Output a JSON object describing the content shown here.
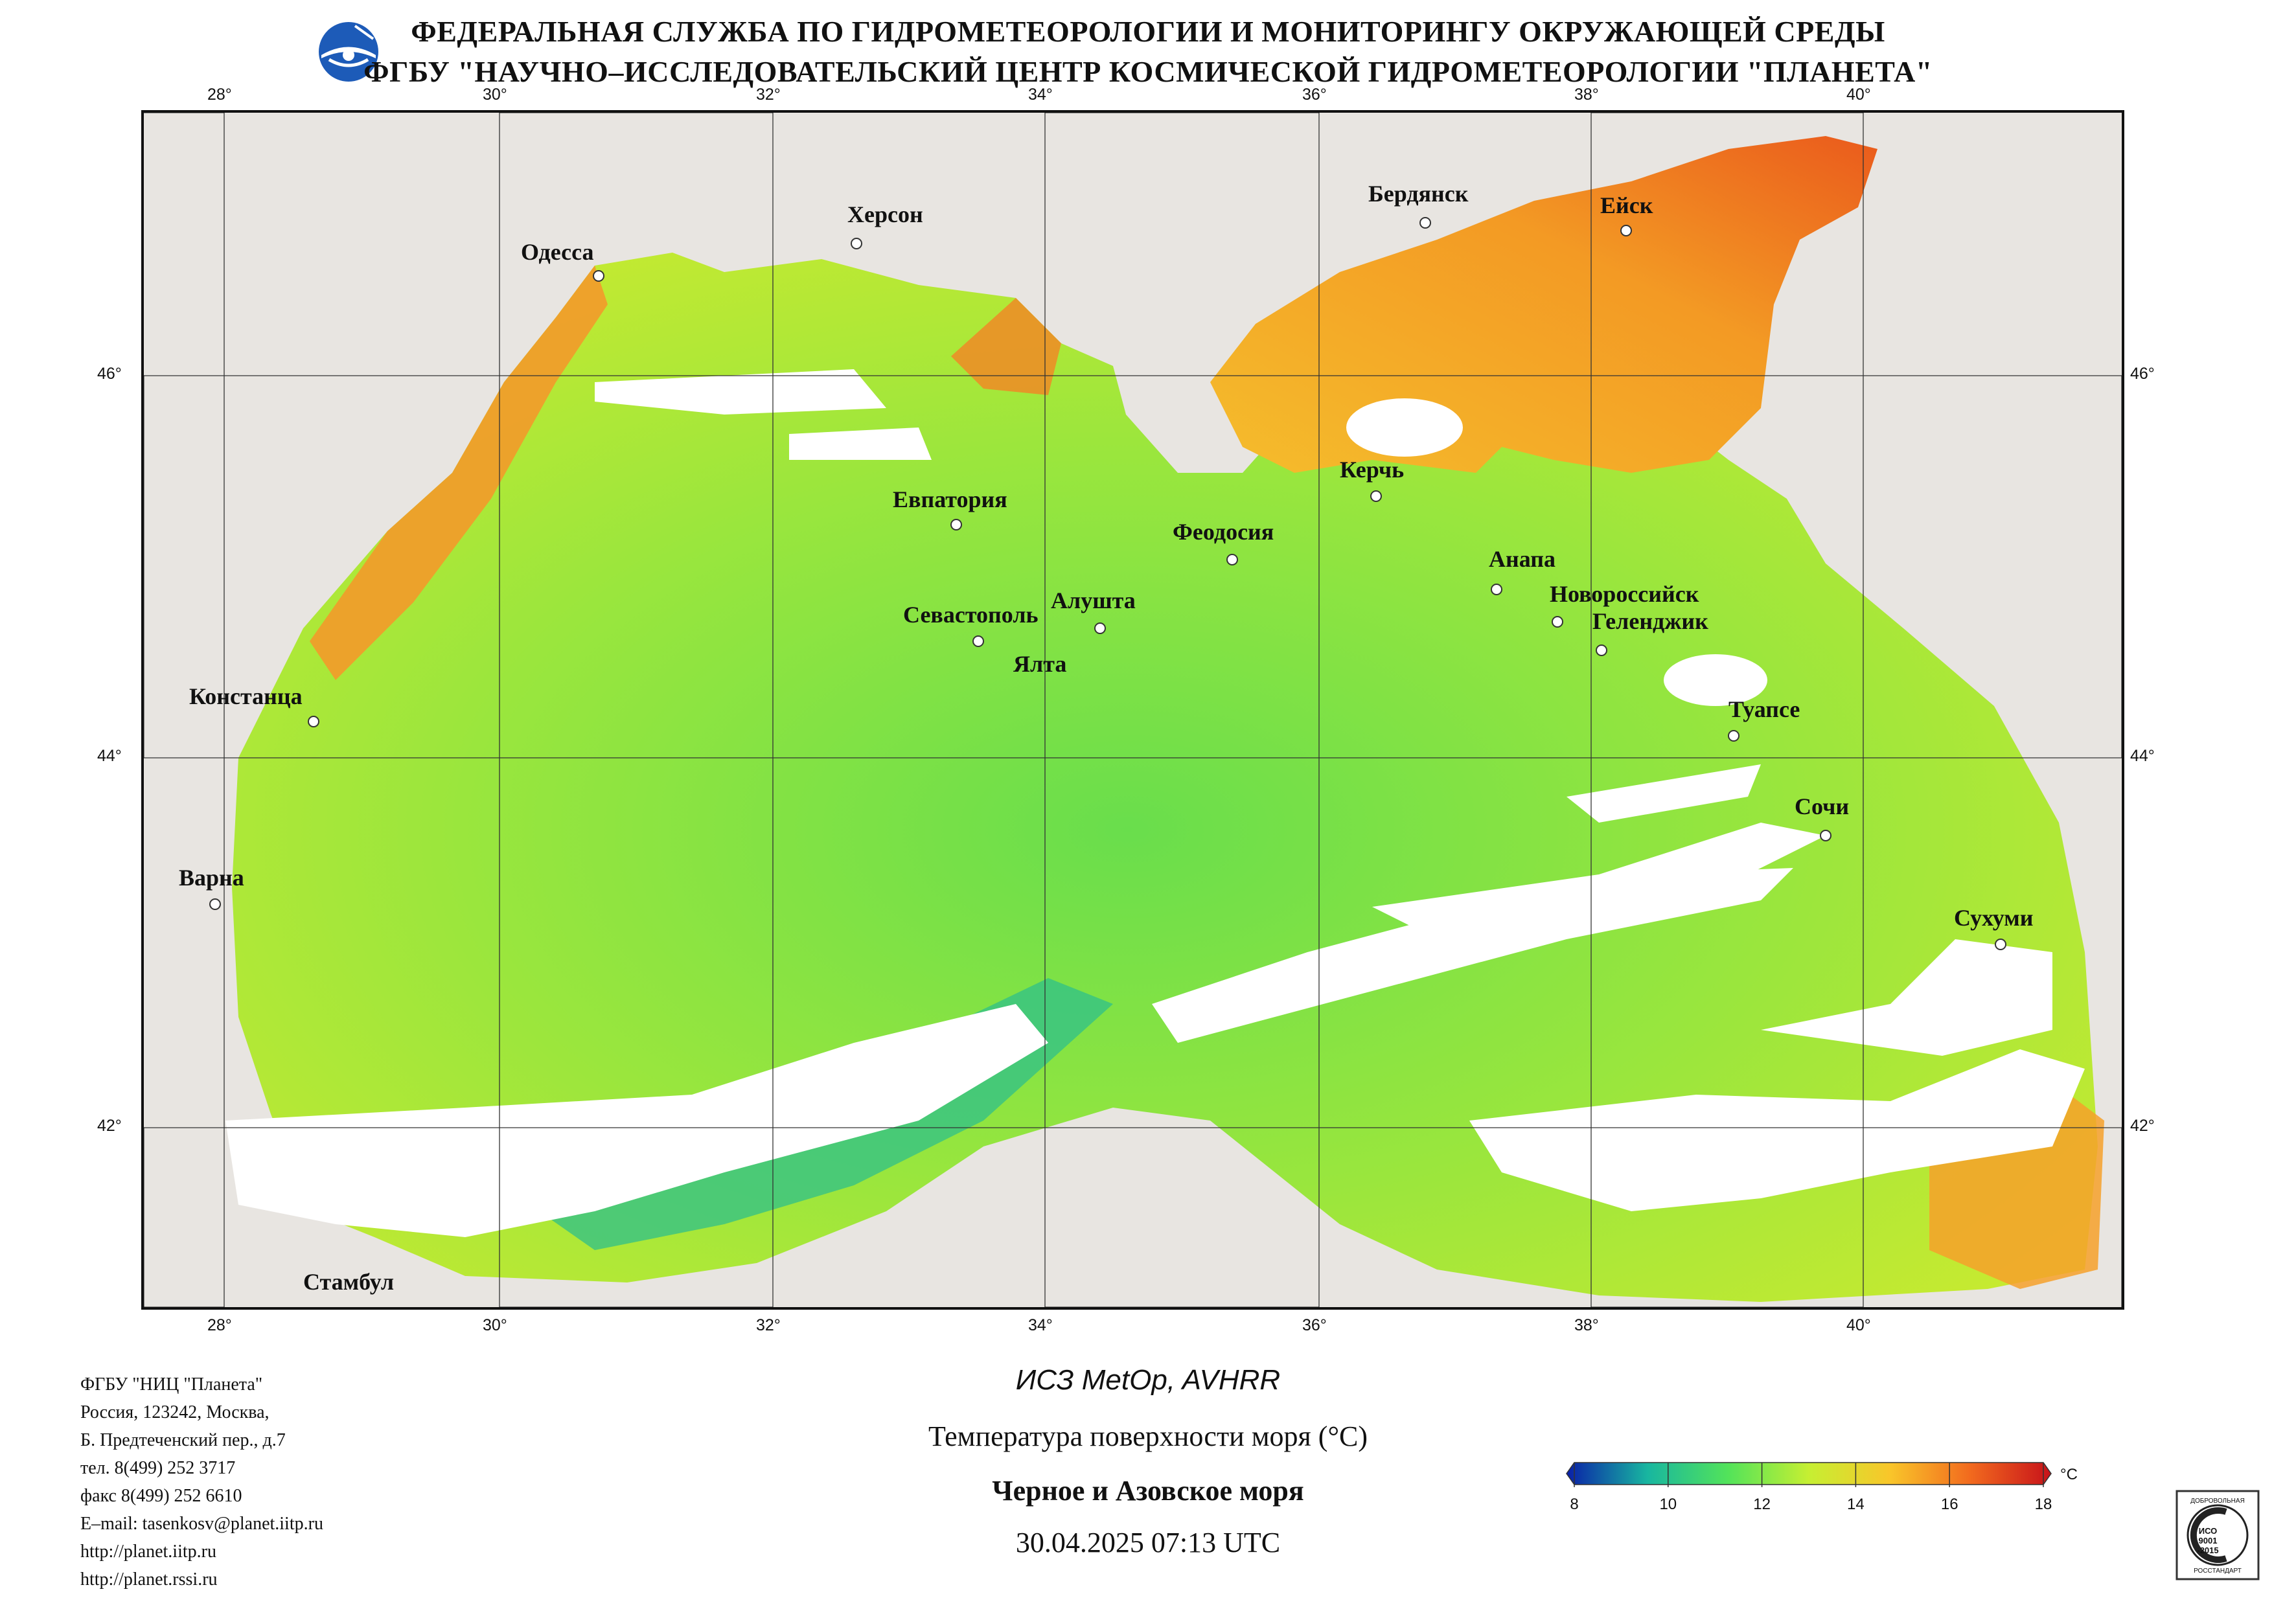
{
  "header": {
    "line1": "ФЕДЕРАЛЬНАЯ СЛУЖБА ПО ГИДРОМЕТЕОРОЛОГИИ И МОНИТОРИНГУ ОКРУЖАЮЩЕЙ СРЕДЫ",
    "line2": "ФГБУ \"НАУЧНО–ИССЛЕДОВАТЕЛЬСКИЙ ЦЕНТР КОСМИЧЕСКОЙ ГИДРОМЕТЕОРОЛОГИИ \"ПЛАНЕТА\""
  },
  "map": {
    "lon_ticks": [
      "28°",
      "30°",
      "32°",
      "34°",
      "36°",
      "38°",
      "40°"
    ],
    "lat_ticks": [
      "46°",
      "44°",
      "42°"
    ],
    "colors": {
      "land": "#e8e5e1",
      "cloud": "#ffffff",
      "border": "#555555"
    },
    "cities": [
      {
        "name": "Одесса"
      },
      {
        "name": "Херсон"
      },
      {
        "name": "Бердянск"
      },
      {
        "name": "Ейск"
      },
      {
        "name": "Евпатория"
      },
      {
        "name": "Керчь"
      },
      {
        "name": "Феодосия"
      },
      {
        "name": "Анапа"
      },
      {
        "name": "Севастополь"
      },
      {
        "name": "Алушта"
      },
      {
        "name": "Новороссийск"
      },
      {
        "name": "Геленджик"
      },
      {
        "name": "Ялта"
      },
      {
        "name": "Констанца"
      },
      {
        "name": "Туапсе"
      },
      {
        "name": "Сочи"
      },
      {
        "name": "Варна"
      },
      {
        "name": "Сухуми"
      },
      {
        "name": "Стамбул"
      }
    ]
  },
  "contacts": [
    "ФГБУ \"НИЦ \"Планета\"",
    "Россия, 123242, Москва,",
    "Б. Предтеченский пер., д.7",
    "тел. 8(499) 252 3717",
    "факс 8(499) 252 6610",
    "E–mail: tasenkosv@planet.iitp.ru",
    "http://planet.iitp.ru",
    "http://planet.rssi.ru"
  ],
  "caption": {
    "satellite": "ИСЗ MetOp, AVHRR",
    "product": "Температура поверхности моря (°C)",
    "region": "Черное и Азовское моря",
    "datetime": "30.04.2025 07:13 UTC"
  },
  "colorbar": {
    "unit": "°C",
    "ticks": [
      "8",
      "10",
      "12",
      "14",
      "16",
      "18"
    ],
    "min": 8,
    "max": 18,
    "stops": [
      "#0a1fa8",
      "#18b6a0",
      "#52e35a",
      "#c6ef32",
      "#f9c62a",
      "#f26a1e",
      "#c7121a"
    ]
  },
  "certification": {
    "top": "ДОБРОВОЛЬНАЯ",
    "mid": "ИСО 9001 -2015",
    "bottom": "РОССТАНДАРТ"
  }
}
